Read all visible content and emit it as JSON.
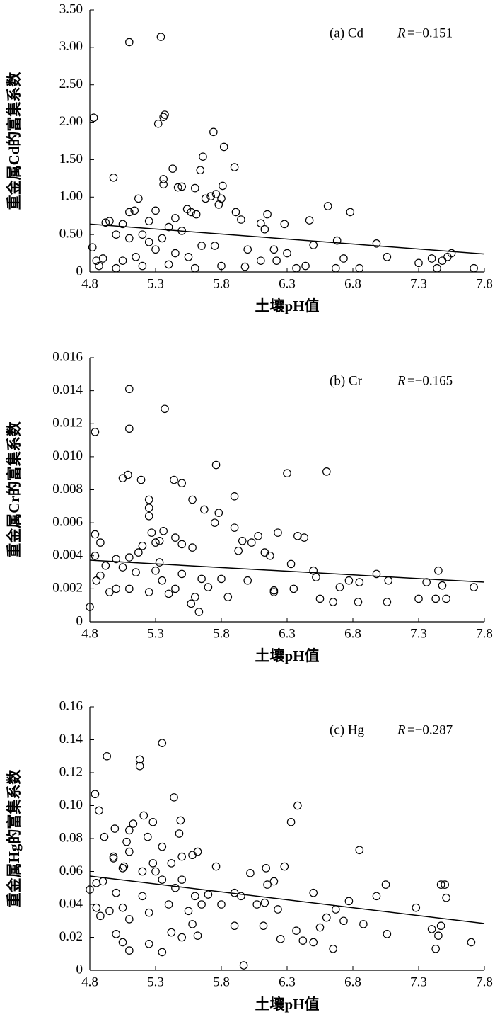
{
  "chart_data": [
    {
      "type": "scatter",
      "annotation": "(a) Cd",
      "r_symbol": "R",
      "r_text": "=−0.151",
      "xlabel": "土壤pH值",
      "ylabel": "重金属Cd的富集系数",
      "xlim": [
        4.8,
        7.8
      ],
      "xticks": [
        4.8,
        5.3,
        5.8,
        6.3,
        6.8,
        7.3,
        7.8
      ],
      "ylim": [
        0,
        3.5
      ],
      "yticks": [
        0,
        {
          "value": 0.5,
          "label": "0.50"
        },
        {
          "value": 1,
          "label": "1.00"
        },
        {
          "value": 1.5,
          "label": "1.50"
        },
        {
          "value": 2,
          "label": "2.00"
        },
        {
          "value": 2.5,
          "label": "2.50"
        },
        {
          "value": 3,
          "label": "3.00"
        },
        {
          "value": 3.5,
          "label": "3.50"
        }
      ],
      "color": "#000000",
      "x": [
        4.83,
        5.1,
        5.34,
        5.37,
        5.36,
        5.32,
        5.74,
        5.82,
        5.66,
        5.64,
        5.9,
        5.43,
        4.98,
        5.36,
        5.36,
        5.5,
        5.47,
        5.6,
        5.81,
        5.76,
        5.72,
        5.8,
        5.68,
        5.17,
        5.78,
        6.61,
        5.54,
        5.57,
        5.61,
        5.14,
        5.1,
        5.3,
        5.91,
        6.78,
        6.15,
        5.45,
        4.95,
        4.92,
        5.05,
        5.25,
        6.28,
        6.47,
        6.13,
        6.1,
        5.95,
        5.5,
        5.4,
        5.2,
        5.1,
        5.0,
        5.65,
        5.75,
        6.0,
        6.2,
        6.5,
        6.68,
        6.98,
        6.3,
        6.1,
        5.3,
        5.15,
        5.05,
        4.9,
        4.82,
        4.85,
        4.87,
        5.0,
        5.2,
        5.4,
        5.6,
        5.8,
        5.98,
        6.22,
        6.37,
        6.44,
        6.67,
        6.73,
        6.85,
        7.06,
        7.3,
        7.44,
        7.48,
        7.52,
        7.55,
        7.4,
        7.72,
        5.45,
        5.55,
        5.25,
        5.35
      ],
      "y": [
        2.06,
        3.07,
        3.14,
        2.1,
        2.07,
        1.98,
        1.87,
        1.67,
        1.54,
        1.36,
        1.4,
        1.38,
        1.26,
        1.24,
        1.17,
        1.14,
        1.13,
        1.12,
        1.15,
        1.04,
        1.01,
        0.98,
        0.98,
        0.98,
        0.9,
        0.88,
        0.84,
        0.8,
        0.77,
        0.82,
        0.8,
        0.82,
        0.8,
        0.8,
        0.77,
        0.72,
        0.68,
        0.66,
        0.64,
        0.68,
        0.64,
        0.69,
        0.57,
        0.65,
        0.7,
        0.55,
        0.6,
        0.5,
        0.45,
        0.5,
        0.35,
        0.35,
        0.3,
        0.3,
        0.36,
        0.42,
        0.38,
        0.25,
        0.15,
        0.3,
        0.2,
        0.15,
        0.18,
        0.33,
        0.15,
        0.08,
        0.05,
        0.08,
        0.1,
        0.05,
        0.08,
        0.07,
        0.15,
        0.05,
        0.08,
        0.05,
        0.18,
        0.05,
        0.2,
        0.12,
        0.05,
        0.15,
        0.2,
        0.25,
        0.18,
        0.05,
        0.25,
        0.2,
        0.4,
        0.45
      ],
      "trendline": {
        "x": [
          4.8,
          7.8
        ],
        "y": [
          0.64,
          0.24
        ]
      }
    },
    {
      "type": "scatter",
      "annotation": "(b) Cr",
      "r_symbol": "R",
      "r_text": "=−0.165",
      "xlabel": "土壤pH值",
      "ylabel": "重金属Cr的富集系数",
      "xlim": [
        4.8,
        7.8
      ],
      "xticks": [
        4.8,
        5.3,
        5.8,
        6.3,
        6.8,
        7.3,
        7.8
      ],
      "ylim": [
        0,
        0.016
      ],
      "yticks": [
        0,
        0.002,
        0.004,
        0.006,
        0.008,
        {
          "value": 0.01,
          "label": "0.010"
        },
        0.012,
        0.014,
        0.016
      ],
      "color": "#000000",
      "x": [
        4.84,
        5.1,
        5.1,
        5.37,
        5.76,
        6.3,
        6.6,
        5.09,
        5.05,
        5.19,
        5.44,
        5.5,
        5.9,
        5.25,
        5.58,
        5.25,
        5.67,
        5.78,
        5.25,
        5.75,
        5.9,
        6.23,
        4.84,
        5.27,
        5.36,
        6.08,
        6.38,
        6.43,
        5.45,
        5.96,
        5.33,
        5.3,
        4.88,
        6.03,
        5.5,
        5.58,
        5.2,
        5.93,
        6.13,
        5.17,
        6.17,
        4.84,
        5.1,
        5.0,
        5.33,
        6.33,
        4.92,
        5.05,
        5.15,
        5.3,
        5.5,
        5.65,
        5.8,
        6.0,
        6.5,
        6.52,
        6.98,
        7.45,
        7.48,
        7.36,
        7.07,
        6.77,
        6.85,
        6.7,
        6.35,
        6.2,
        5.0,
        4.95,
        5.1,
        5.25,
        5.4,
        5.6,
        5.63,
        5.57,
        4.8,
        5.45,
        5.7,
        5.85,
        6.2,
        6.55,
        6.65,
        6.84,
        7.06,
        7.3,
        7.43,
        7.51,
        7.72,
        4.88,
        4.85,
        5.35
      ],
      "y": [
        0.0115,
        0.0141,
        0.0117,
        0.0129,
        0.0095,
        0.009,
        0.0091,
        0.0089,
        0.0087,
        0.0086,
        0.0086,
        0.0084,
        0.0076,
        0.0074,
        0.0074,
        0.0069,
        0.0068,
        0.0066,
        0.0064,
        0.006,
        0.0057,
        0.0054,
        0.0053,
        0.0054,
        0.0055,
        0.0052,
        0.0052,
        0.0051,
        0.0051,
        0.0049,
        0.0049,
        0.0048,
        0.0048,
        0.0048,
        0.0047,
        0.0045,
        0.0046,
        0.0043,
        0.0042,
        0.0042,
        0.004,
        0.004,
        0.0039,
        0.0038,
        0.0036,
        0.0035,
        0.0034,
        0.0033,
        0.003,
        0.0031,
        0.0029,
        0.0026,
        0.0026,
        0.0025,
        0.0031,
        0.0027,
        0.0029,
        0.0031,
        0.0022,
        0.0024,
        0.0025,
        0.0025,
        0.0024,
        0.0021,
        0.002,
        0.0019,
        0.002,
        0.0018,
        0.002,
        0.0018,
        0.0017,
        0.0015,
        0.0006,
        0.0011,
        0.0009,
        0.002,
        0.0021,
        0.0015,
        0.0018,
        0.0014,
        0.0012,
        0.0012,
        0.0012,
        0.0014,
        0.0014,
        0.0014,
        0.0021,
        0.0028,
        0.0025,
        0.0025
      ],
      "trendline": {
        "x": [
          4.8,
          7.8
        ],
        "y": [
          0.00373,
          0.0024
        ]
      }
    },
    {
      "type": "scatter",
      "annotation": "(c) Hg",
      "r_symbol": "R",
      "r_text": "=−0.287",
      "xlabel": "土壤pH值",
      "ylabel": "重金属Hg的富集系数",
      "xlim": [
        4.8,
        7.8
      ],
      "xticks": [
        4.8,
        5.3,
        5.8,
        6.3,
        6.8,
        7.3,
        7.8
      ],
      "ylim": [
        0,
        0.16
      ],
      "yticks": [
        0,
        0.02,
        0.04,
        0.06,
        0.08,
        {
          "value": 0.1,
          "label": "0.10"
        },
        0.12,
        0.14,
        0.16
      ],
      "color": "#000000",
      "x": [
        5.35,
        4.93,
        5.18,
        5.18,
        4.84,
        5.44,
        6.38,
        4.87,
        5.21,
        5.49,
        6.33,
        5.28,
        5.13,
        4.99,
        5.1,
        5.48,
        5.24,
        4.91,
        5.08,
        6.85,
        5.35,
        5.62,
        5.1,
        5.58,
        4.98,
        5.5,
        4.98,
        5.28,
        5.42,
        5.76,
        6.28,
        6.14,
        5.06,
        5.05,
        5.2,
        5.3,
        6.02,
        5.5,
        5.35,
        4.85,
        4.8,
        6.2,
        7.05,
        7.47,
        7.5,
        7.51,
        6.98,
        6.5,
        6.15,
        5.9,
        5.7,
        5.6,
        5.45,
        5.2,
        5.0,
        4.9,
        4.85,
        4.88,
        4.95,
        5.05,
        5.1,
        5.25,
        5.4,
        5.55,
        5.65,
        5.8,
        5.95,
        6.07,
        6.13,
        6.23,
        6.67,
        6.77,
        6.73,
        6.6,
        6.55,
        6.37,
        6.25,
        6.42,
        6.5,
        6.65,
        6.88,
        7.06,
        7.28,
        7.4,
        7.47,
        7.45,
        7.43,
        7.7,
        5.97,
        5.35,
        5.1,
        5.0,
        5.05,
        5.25,
        5.42,
        5.5,
        5.62,
        5.9,
        6.12,
        5.58
      ],
      "y": [
        0.138,
        0.13,
        0.128,
        0.124,
        0.107,
        0.105,
        0.1,
        0.097,
        0.094,
        0.091,
        0.09,
        0.09,
        0.089,
        0.086,
        0.085,
        0.083,
        0.081,
        0.081,
        0.078,
        0.073,
        0.075,
        0.072,
        0.072,
        0.07,
        0.069,
        0.069,
        0.068,
        0.065,
        0.065,
        0.063,
        0.063,
        0.062,
        0.063,
        0.062,
        0.06,
        0.06,
        0.059,
        0.055,
        0.055,
        0.053,
        0.049,
        0.054,
        0.052,
        0.052,
        0.052,
        0.044,
        0.045,
        0.047,
        0.052,
        0.047,
        0.046,
        0.045,
        0.05,
        0.045,
        0.047,
        0.054,
        0.038,
        0.033,
        0.036,
        0.038,
        0.031,
        0.035,
        0.04,
        0.036,
        0.04,
        0.04,
        0.045,
        0.04,
        0.041,
        0.037,
        0.037,
        0.042,
        0.03,
        0.032,
        0.026,
        0.024,
        0.019,
        0.018,
        0.017,
        0.013,
        0.028,
        0.022,
        0.038,
        0.025,
        0.027,
        0.021,
        0.013,
        0.017,
        0.003,
        0.011,
        0.012,
        0.022,
        0.017,
        0.016,
        0.023,
        0.02,
        0.021,
        0.027,
        0.027,
        0.028
      ],
      "trendline": {
        "x": [
          4.8,
          7.8
        ],
        "y": [
          0.0572,
          0.0284
        ]
      }
    }
  ]
}
